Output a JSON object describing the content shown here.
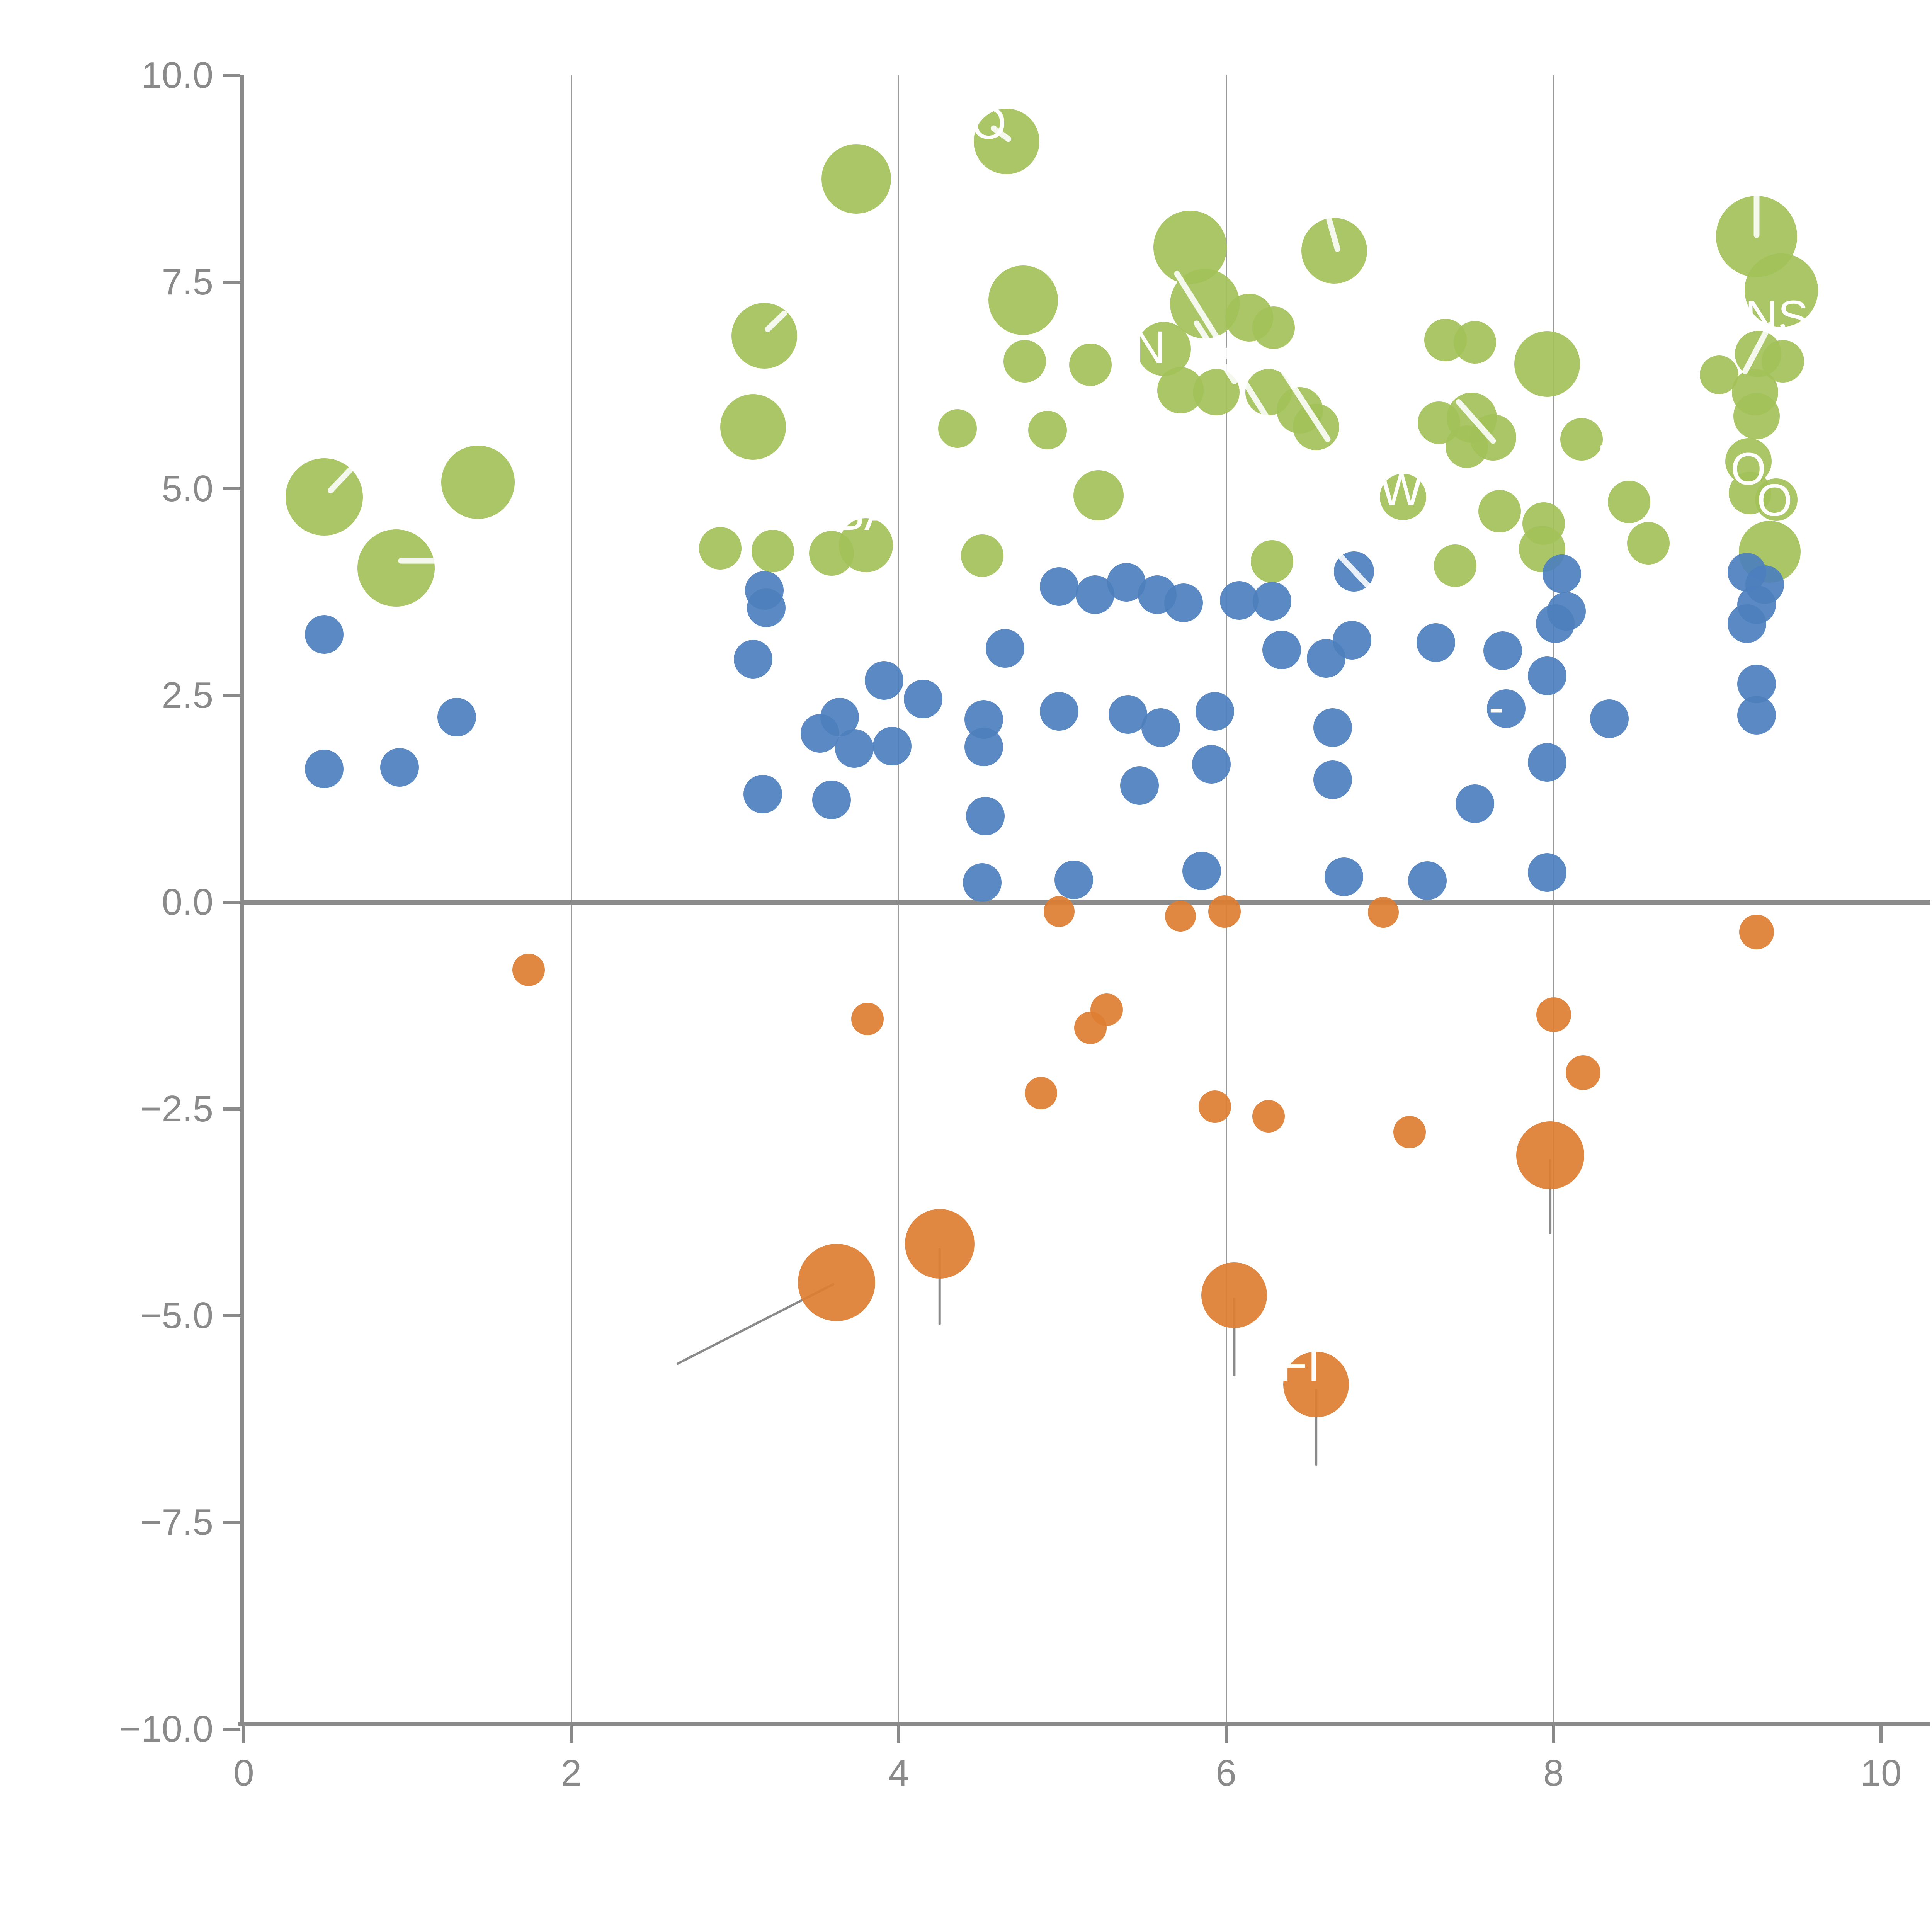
{
  "chart_data": {
    "type": "scatter",
    "title": "",
    "xlabel": "",
    "ylabel": "",
    "xlim": [
      0,
      10
    ],
    "ylim": [
      -10,
      10
    ],
    "grid": "vertical-only",
    "legend_position": "none",
    "x_ticks": {
      "values": [
        0,
        2,
        4,
        6,
        8,
        10
      ],
      "labels": [
        "0",
        "2",
        "4",
        "6",
        "8",
        "10"
      ]
    },
    "y_ticks": {
      "values": [
        10,
        7.5,
        5,
        2.5,
        0,
        -2.5,
        -5,
        -7.5,
        -10
      ],
      "labels": [
        "10.0",
        "7.5",
        "5.0",
        "2.5",
        "0.0",
        "−2.5",
        "−5.0",
        "−7.5",
        "−10.0"
      ]
    },
    "gridlines_x": [
      2,
      4,
      6,
      8
    ],
    "zero_line_y": 0,
    "colors": {
      "green": "#a3c159",
      "blue": "#4d7fbe",
      "orange": "#dd7e32",
      "axis_gray": "#8a8a8a",
      "grid_gray": "#9b9b9b",
      "annotation_white": "#ffffff"
    },
    "series": [
      {
        "name": "green-bubbles",
        "color": "#a3c159",
        "points": [
          [
            0.49,
            4.9,
            100
          ],
          [
            1.43,
            5.08,
            95
          ],
          [
            0.93,
            4.04,
            100
          ],
          [
            3.18,
            6.85,
            85
          ],
          [
            3.11,
            5.75,
            85
          ],
          [
            3.74,
            8.75,
            90
          ],
          [
            4.66,
            9.2,
            85
          ],
          [
            4.76,
            7.28,
            90
          ],
          [
            4.77,
            6.54,
            55
          ],
          [
            5.17,
            6.5,
            55
          ],
          [
            4.36,
            5.73,
            50
          ],
          [
            4.91,
            5.71,
            50
          ],
          [
            5.22,
            4.92,
            65
          ],
          [
            2.91,
            4.28,
            55
          ],
          [
            3.23,
            4.25,
            55
          ],
          [
            3.59,
            4.22,
            58
          ],
          [
            3.8,
            4.32,
            70
          ],
          [
            4.51,
            4.19,
            55
          ],
          [
            6.28,
            4.12,
            55
          ],
          [
            5.78,
            7.92,
            95
          ],
          [
            5.87,
            7.24,
            90
          ],
          [
            6.66,
            7.88,
            85
          ],
          [
            6.14,
            7.07,
            62
          ],
          [
            5.62,
            6.69,
            70
          ],
          [
            5.72,
            6.19,
            60
          ],
          [
            5.94,
            6.17,
            60
          ],
          [
            6.29,
            6.95,
            55
          ],
          [
            6.26,
            6.17,
            60
          ],
          [
            6.45,
            5.95,
            60
          ],
          [
            6.55,
            5.75,
            60
          ],
          [
            7.34,
            6.8,
            55
          ],
          [
            7.52,
            6.77,
            55
          ],
          [
            7.96,
            6.51,
            85
          ],
          [
            7.5,
            5.86,
            65
          ],
          [
            7.3,
            5.8,
            55
          ],
          [
            7.63,
            5.62,
            60
          ],
          [
            7.47,
            5.51,
            55
          ],
          [
            8.17,
            5.6,
            55
          ],
          [
            7.67,
            4.73,
            55
          ],
          [
            7.94,
            4.58,
            55
          ],
          [
            8.46,
            4.84,
            55
          ],
          [
            9.24,
            8.05,
            105
          ],
          [
            9.39,
            7.4,
            95
          ],
          [
            9.25,
            6.63,
            60
          ],
          [
            9.4,
            6.54,
            55
          ],
          [
            9.01,
            6.38,
            50
          ],
          [
            9.23,
            6.17,
            60
          ],
          [
            9.24,
            5.88,
            60
          ],
          [
            9.19,
            5.33,
            60
          ],
          [
            9.2,
            4.95,
            55
          ],
          [
            9.36,
            4.87,
            55
          ],
          [
            9.32,
            4.24,
            80
          ],
          [
            7.08,
            4.9,
            60
          ],
          [
            7.4,
            4.07,
            55
          ],
          [
            7.93,
            4.27,
            60
          ],
          [
            8.58,
            4.34,
            55
          ]
        ]
      },
      {
        "name": "blue-bubbles",
        "color": "#4d7fbe",
        "points": [
          [
            0.49,
            3.24,
            50
          ],
          [
            0.49,
            1.61,
            50
          ],
          [
            0.95,
            1.63,
            50
          ],
          [
            1.3,
            2.24,
            50
          ],
          [
            3.18,
            3.77,
            50
          ],
          [
            3.19,
            3.56,
            50
          ],
          [
            3.11,
            2.94,
            50
          ],
          [
            3.17,
            1.31,
            50
          ],
          [
            3.59,
            1.24,
            50
          ],
          [
            3.52,
            2.04,
            50
          ],
          [
            3.91,
            2.68,
            50
          ],
          [
            4.15,
            2.46,
            50
          ],
          [
            3.64,
            2.24,
            50
          ],
          [
            3.73,
            1.86,
            50
          ],
          [
            3.96,
            1.89,
            50
          ],
          [
            4.65,
            3.07,
            50
          ],
          [
            4.52,
            2.21,
            50
          ],
          [
            4.52,
            1.88,
            50
          ],
          [
            4.53,
            1.04,
            50
          ],
          [
            4.51,
            0.24,
            50
          ],
          [
            4.98,
            3.82,
            50
          ],
          [
            5.2,
            3.72,
            50
          ],
          [
            5.39,
            3.87,
            50
          ],
          [
            5.58,
            3.72,
            50
          ],
          [
            5.74,
            3.62,
            50
          ],
          [
            6.08,
            3.65,
            50
          ],
          [
            6.28,
            3.64,
            50
          ],
          [
            6.78,
            4.0,
            52
          ],
          [
            6.34,
            3.05,
            50
          ],
          [
            6.61,
            2.95,
            50
          ],
          [
            6.77,
            3.17,
            50
          ],
          [
            4.98,
            2.31,
            50
          ],
          [
            5.4,
            2.27,
            50
          ],
          [
            5.6,
            2.11,
            50
          ],
          [
            5.47,
            1.41,
            50
          ],
          [
            5.93,
            2.31,
            50
          ],
          [
            5.91,
            1.67,
            50
          ],
          [
            6.65,
            2.11,
            50
          ],
          [
            6.65,
            1.48,
            50
          ],
          [
            5.07,
            0.27,
            50
          ],
          [
            5.85,
            0.38,
            50
          ],
          [
            6.72,
            0.31,
            50
          ],
          [
            7.28,
            3.14,
            50
          ],
          [
            7.69,
            3.04,
            50
          ],
          [
            8.05,
            3.97,
            50
          ],
          [
            8.08,
            3.52,
            50
          ],
          [
            8.01,
            3.37,
            50
          ],
          [
            7.96,
            2.74,
            50
          ],
          [
            7.71,
            2.34,
            50
          ],
          [
            8.34,
            2.22,
            50
          ],
          [
            7.96,
            1.69,
            50
          ],
          [
            7.52,
            1.19,
            50
          ],
          [
            7.96,
            0.36,
            50
          ],
          [
            7.23,
            0.26,
            50
          ],
          [
            9.29,
            3.84,
            50
          ],
          [
            9.18,
            3.99,
            50
          ],
          [
            9.24,
            3.6,
            50
          ],
          [
            9.18,
            3.37,
            50
          ],
          [
            9.24,
            2.64,
            50
          ],
          [
            9.24,
            2.26,
            50
          ]
        ]
      },
      {
        "name": "orange-bubbles",
        "color": "#dd7e32",
        "points": [
          [
            1.74,
            -0.82,
            42
          ],
          [
            3.81,
            -1.41,
            42
          ],
          [
            5.17,
            -1.52,
            42
          ],
          [
            5.27,
            -1.3,
            42
          ],
          [
            4.87,
            -2.31,
            42
          ],
          [
            5.93,
            -2.47,
            42
          ],
          [
            6.26,
            -2.59,
            42
          ],
          [
            7.12,
            -2.78,
            42
          ],
          [
            8.0,
            -1.36,
            45
          ],
          [
            8.18,
            -2.06,
            45
          ],
          [
            4.98,
            -0.11,
            40
          ],
          [
            5.72,
            -0.17,
            40
          ],
          [
            5.99,
            -0.11,
            42
          ],
          [
            6.96,
            -0.12,
            40
          ],
          [
            9.24,
            -0.36,
            45
          ],
          [
            3.62,
            -4.6,
            100
          ],
          [
            4.25,
            -4.13,
            90
          ],
          [
            7.98,
            -3.06,
            88
          ],
          [
            6.05,
            -4.75,
            85
          ],
          [
            6.55,
            -5.83,
            85
          ]
        ]
      }
    ],
    "annotations": {
      "white_label_fragments": [
        {
          "text": "O",
          "x": 4.55,
          "y": 9.42
        },
        {
          "text": "N",
          "x": 5.53,
          "y": 6.71
        },
        {
          "text": "BA",
          "x": 3.79,
          "y": 4.69
        },
        {
          "text": "W",
          "x": 7.07,
          "y": 4.99
        },
        {
          "text": "ENS",
          "x": 9.27,
          "y": 7.08
        },
        {
          "text": "O",
          "x": 9.19,
          "y": 5.24
        },
        {
          "text": "O",
          "x": 9.35,
          "y": 4.86
        },
        {
          "text": "FI",
          "x": 6.45,
          "y": -5.6
        },
        {
          "text": "-",
          "x": 7.65,
          "y": 2.36
        }
      ],
      "white_leader_lines": [
        [
          0.53,
          4.98,
          0.65,
          5.23
        ],
        [
          0.96,
          4.13,
          1.2,
          4.13
        ],
        [
          3.2,
          6.93,
          3.3,
          7.12
        ],
        [
          4.58,
          9.36,
          4.67,
          9.23
        ],
        [
          9.24,
          8.53,
          9.24,
          8.07
        ],
        [
          6.63,
          8.25,
          6.68,
          7.9
        ],
        [
          5.7,
          7.6,
          6.3,
          5.7
        ],
        [
          5.82,
          7.0,
          6.05,
          6.3
        ],
        [
          6.35,
          6.42,
          6.62,
          5.6
        ],
        [
          7.42,
          6.05,
          7.63,
          5.58
        ],
        [
          8.3,
          5.5,
          8.92,
          4.58
        ],
        [
          9.32,
          6.98,
          9.17,
          6.42
        ],
        [
          6.7,
          4.18,
          6.87,
          3.82
        ]
      ],
      "gray_leader_lines": [
        [
          3.6,
          -4.62,
          2.65,
          -5.58
        ],
        [
          4.25,
          -4.2,
          4.25,
          -5.1
        ],
        [
          6.05,
          -4.8,
          6.05,
          -5.72
        ],
        [
          6.55,
          -5.9,
          6.55,
          -6.8
        ],
        [
          7.98,
          -3.12,
          7.98,
          -4.0
        ]
      ]
    }
  }
}
